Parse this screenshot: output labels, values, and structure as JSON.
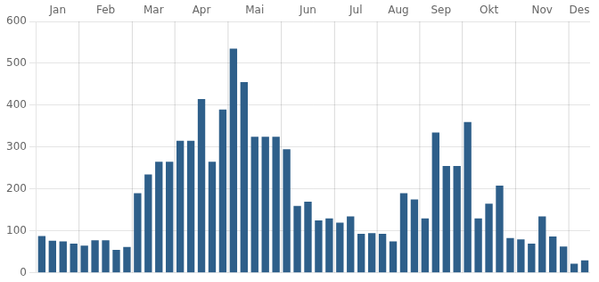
{
  "chart_data": {
    "type": "bar",
    "categories": [
      "Jan",
      null,
      null,
      null,
      "Feb",
      null,
      null,
      null,
      null,
      "Mar",
      null,
      null,
      null,
      "Apr",
      null,
      null,
      null,
      null,
      "Mai",
      null,
      null,
      null,
      null,
      "Jun",
      null,
      null,
      null,
      null,
      "Jul",
      null,
      null,
      null,
      "Aug",
      null,
      null,
      null,
      "Sep",
      null,
      null,
      null,
      "Okt",
      null,
      null,
      null,
      null,
      "Nov",
      null,
      null,
      null,
      null,
      "Des",
      null
    ],
    "values": [
      88,
      77,
      75,
      70,
      65,
      78,
      78,
      55,
      62,
      190,
      235,
      265,
      265,
      315,
      315,
      415,
      265,
      390,
      535,
      455,
      325,
      325,
      325,
      295,
      160,
      170,
      125,
      130,
      120,
      135,
      93,
      95,
      93,
      75,
      190,
      175,
      130,
      335,
      255,
      255,
      360,
      130,
      165,
      208,
      83,
      80,
      70,
      135,
      87,
      63,
      22,
      30
    ],
    "color": "#2e5f8a",
    "ylim": [
      0,
      600
    ],
    "yticks": [
      0,
      100,
      200,
      300,
      400,
      500,
      600
    ],
    "grid": true
  }
}
